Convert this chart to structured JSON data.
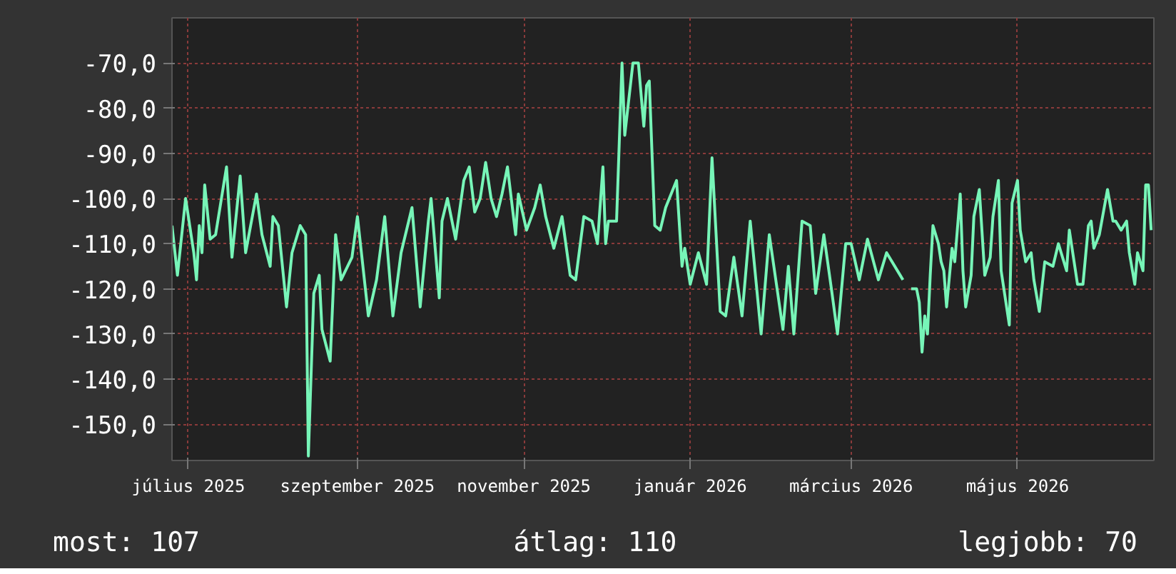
{
  "chart_data": {
    "type": "line",
    "x": [
      "2025-06-25",
      "2025-06-27",
      "2025-06-30",
      "2025-07-03",
      "2025-07-04",
      "2025-07-05",
      "2025-07-06",
      "2025-07-07",
      "2025-07-09",
      "2025-07-11",
      "2025-07-15",
      "2025-07-17",
      "2025-07-20",
      "2025-07-22",
      "2025-07-26",
      "2025-07-28",
      "2025-07-31",
      "2025-08-01",
      "2025-08-03",
      "2025-08-06",
      "2025-08-08",
      "2025-08-11",
      "2025-08-13",
      "2025-08-14",
      "2025-08-16",
      "2025-08-18",
      "2025-08-19",
      "2025-08-22",
      "2025-08-24",
      "2025-08-26",
      "2025-08-30",
      "2025-09-01",
      "2025-09-05",
      "2025-09-08",
      "2025-09-11",
      "2025-09-14",
      "2025-09-17",
      "2025-09-21",
      "2025-09-24",
      "2025-09-27",
      "2025-09-28",
      "2025-10-01",
      "2025-10-02",
      "2025-10-04",
      "2025-10-07",
      "2025-10-10",
      "2025-10-12",
      "2025-10-14",
      "2025-10-16",
      "2025-10-18",
      "2025-10-20",
      "2025-10-22",
      "2025-10-24",
      "2025-10-26",
      "2025-10-29",
      "2025-10-30",
      "2025-11-02",
      "2025-11-05",
      "2025-11-07",
      "2025-11-09",
      "2025-11-12",
      "2025-11-15",
      "2025-11-18",
      "2025-11-20",
      "2025-11-23",
      "2025-11-26",
      "2025-11-28",
      "2025-11-30",
      "2025-12-01",
      "2025-12-02",
      "2025-12-05",
      "2025-12-07",
      "2025-12-08",
      "2025-12-11",
      "2025-12-13",
      "2025-12-15",
      "2025-12-16",
      "2025-12-17",
      "2025-12-19",
      "2025-12-21",
      "2025-12-23",
      "2025-12-27",
      "2025-12-29",
      "2025-12-30",
      "2026-01-01",
      "2026-01-04",
      "2026-01-07",
      "2026-01-09",
      "2026-01-12",
      "2026-01-14",
      "2026-01-17",
      "2026-01-20",
      "2026-01-23",
      "2026-01-27",
      "2026-01-30",
      "2026-02-04",
      "2026-02-06",
      "2026-02-08",
      "2026-02-11",
      "2026-02-14",
      "2026-02-16",
      "2026-02-19",
      "2026-02-22",
      "2026-02-24",
      "2026-02-27",
      "2026-03-01",
      "2026-03-04",
      "2026-03-07",
      "2026-03-11",
      "2026-03-14",
      "2026-03-19",
      "2026-03-20",
      "2026-03-22",
      "2026-03-23",
      "2026-03-25",
      "2026-03-26",
      "2026-03-27",
      "2026-03-28",
      "2026-03-29",
      "2026-03-30",
      "2026-03-31",
      "2026-04-02",
      "2026-04-03",
      "2026-04-04",
      "2026-04-05",
      "2026-04-07",
      "2026-04-08",
      "2026-04-10",
      "2026-04-11",
      "2026-04-12",
      "2026-04-14",
      "2026-04-15",
      "2026-04-17",
      "2026-04-19",
      "2026-04-21",
      "2026-04-22",
      "2026-04-24",
      "2026-04-25",
      "2026-04-28",
      "2026-04-29",
      "2026-05-01",
      "2026-05-02",
      "2026-05-04",
      "2026-05-06",
      "2026-05-07",
      "2026-05-09",
      "2026-05-11",
      "2026-05-14",
      "2026-05-16",
      "2026-05-19",
      "2026-05-20",
      "2026-05-23",
      "2026-05-25",
      "2026-05-27",
      "2026-05-28",
      "2026-05-29",
      "2026-05-31",
      "2026-06-03",
      "2026-06-05",
      "2026-06-06",
      "2026-06-08",
      "2026-06-10",
      "2026-06-11",
      "2026-06-13",
      "2026-06-14",
      "2026-06-16",
      "2026-06-17",
      "2026-06-18",
      "2026-06-19"
    ],
    "series": [
      {
        "color": "#77f5b8",
        "values": [
          -106,
          -117,
          -100,
          -112,
          -118,
          -106,
          -112,
          -97,
          -109,
          -108,
          -93,
          -113,
          -95,
          -112,
          -99,
          -108,
          -115,
          -104,
          -106,
          -124,
          -112,
          -106,
          -108,
          -157,
          -121,
          -117,
          -129,
          -136,
          -108,
          -118,
          -113,
          -104,
          -126,
          -118,
          -104,
          -126,
          -112,
          -102,
          -124,
          -105,
          -100,
          -122,
          -105,
          -100,
          -109,
          -96,
          -93,
          -103,
          -100,
          -92,
          -100,
          -104,
          -99,
          -93,
          -108,
          -99,
          -107,
          -102,
          -97,
          -104,
          -111,
          -104,
          -117,
          -118,
          -104,
          -105,
          -110,
          -93,
          -110,
          -105,
          -105,
          -70,
          -86,
          -70,
          -70,
          -84,
          -75,
          -74,
          -106,
          -107,
          -102,
          -96,
          -115,
          -111,
          -119,
          -112,
          -119,
          -91,
          -125,
          -126,
          -113,
          -126,
          -105,
          -130,
          -108,
          -129,
          -115,
          -130,
          -105,
          -106,
          -121,
          -108,
          -121,
          -130,
          -110,
          -110,
          -118,
          -109,
          -118,
          -112,
          -117,
          -118,
          null,
          -120,
          -120,
          -123,
          -134,
          -126,
          -130,
          -117,
          -106,
          -110,
          -114,
          -116,
          -124,
          -111,
          -114,
          -99,
          -116,
          -124,
          -117,
          -104,
          -98,
          -117,
          -113,
          -104,
          -96,
          -116,
          -128,
          -101,
          -96,
          -107,
          -114,
          -112,
          -118,
          -125,
          -114,
          -115,
          -110,
          -116,
          -107,
          -119,
          -119,
          -106,
          -105,
          -111,
          -108,
          -98,
          -105,
          -105,
          -107,
          -105,
          -112,
          -119,
          -112,
          -116,
          -97,
          -97,
          -107
        ]
      }
    ],
    "xlim": [
      "2025-06-25",
      "2026-06-20"
    ],
    "xticks": [
      {
        "value": "2025-07-01",
        "label": "július 2025"
      },
      {
        "value": "2025-09-01",
        "label": "szeptember 2025"
      },
      {
        "value": "2025-11-01",
        "label": "november 2025"
      },
      {
        "value": "2026-01-01",
        "label": "január 2026"
      },
      {
        "value": "2026-03-01",
        "label": "március 2026"
      },
      {
        "value": "2026-05-01",
        "label": "május 2026"
      }
    ],
    "ylim": [
      -158,
      -60
    ],
    "yticks": [
      {
        "value": -70,
        "label": "-70,0"
      },
      {
        "value": -80,
        "label": "-80,0"
      },
      {
        "value": -90,
        "label": "-90,0"
      },
      {
        "value": -100,
        "label": "-100,0"
      },
      {
        "value": -110,
        "label": "-110,0"
      },
      {
        "value": -120,
        "label": "-120,0"
      },
      {
        "value": -130,
        "label": "-130,0"
      },
      {
        "value": -140,
        "label": "-140,0"
      },
      {
        "value": -150,
        "label": "-150,0"
      }
    ],
    "grid": true,
    "annotations": [
      "most: 107",
      "átlag: 110",
      "legjobb: 70"
    ]
  }
}
